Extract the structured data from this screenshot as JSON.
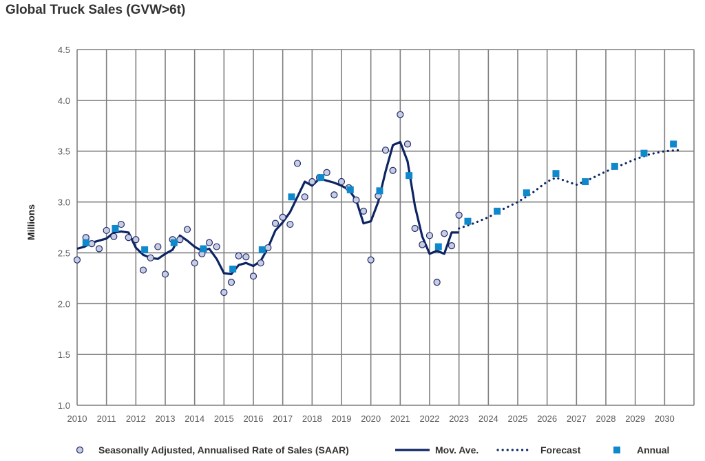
{
  "title": "Global Truck Sales (GVW>6t)",
  "colors": {
    "saar_fill": "#c9cde3",
    "saar_stroke": "#1f2b6b",
    "moving_average": "#0d2463",
    "forecast": "#0d2463",
    "annual": "#0f88cc",
    "grid": "#7f7f7f"
  },
  "legend": {
    "saar": "Seasonally Adjusted, Annualised Rate of Sales (SAAR)",
    "mov_ave": "Mov. Ave.",
    "forecast": "Forecast",
    "annual": "Annual"
  },
  "chart_data": {
    "type": "line",
    "title": "Global Truck Sales (GVW>6t)",
    "xlabel": "",
    "ylabel": "Millions",
    "xlim": [
      2010,
      2031
    ],
    "ylim": [
      1.0,
      4.5
    ],
    "yticks": [
      "1.0",
      "1.5",
      "2.0",
      "2.5",
      "3.0",
      "3.5",
      "4.0",
      "4.5"
    ],
    "xticks": [
      "2010",
      "2011",
      "2012",
      "2013",
      "2014",
      "2015",
      "2016",
      "2017",
      "2018",
      "2019",
      "2020",
      "2021",
      "2022",
      "2023",
      "2024",
      "2025",
      "2026",
      "2027",
      "2028",
      "2029",
      "2030"
    ],
    "grid": true,
    "legend_position": "bottom",
    "series": [
      {
        "name": "Seasonally Adjusted, Annualised Rate of Sales (SAAR)",
        "kind": "scatter",
        "points": [
          [
            2010.0,
            2.43
          ],
          [
            2010.3,
            2.65
          ],
          [
            2010.5,
            2.59
          ],
          [
            2010.75,
            2.54
          ],
          [
            2011.0,
            2.72
          ],
          [
            2011.25,
            2.66
          ],
          [
            2011.5,
            2.78
          ],
          [
            2011.75,
            2.65
          ],
          [
            2012.0,
            2.63
          ],
          [
            2012.25,
            2.33
          ],
          [
            2012.5,
            2.45
          ],
          [
            2012.75,
            2.56
          ],
          [
            2013.0,
            2.29
          ],
          [
            2013.25,
            2.63
          ],
          [
            2013.5,
            2.63
          ],
          [
            2013.75,
            2.73
          ],
          [
            2014.0,
            2.4
          ],
          [
            2014.25,
            2.49
          ],
          [
            2014.5,
            2.6
          ],
          [
            2014.75,
            2.56
          ],
          [
            2015.0,
            2.11
          ],
          [
            2015.25,
            2.21
          ],
          [
            2015.5,
            2.47
          ],
          [
            2015.75,
            2.46
          ],
          [
            2016.0,
            2.27
          ],
          [
            2016.25,
            2.4
          ],
          [
            2016.5,
            2.55
          ],
          [
            2016.75,
            2.79
          ],
          [
            2017.0,
            2.85
          ],
          [
            2017.25,
            2.78
          ],
          [
            2017.5,
            3.38
          ],
          [
            2017.75,
            3.05
          ],
          [
            2018.0,
            3.2
          ],
          [
            2018.25,
            3.24
          ],
          [
            2018.5,
            3.29
          ],
          [
            2018.75,
            3.07
          ],
          [
            2019.0,
            3.2
          ],
          [
            2019.25,
            3.14
          ],
          [
            2019.5,
            3.02
          ],
          [
            2019.75,
            2.91
          ],
          [
            2020.0,
            2.43
          ],
          [
            2020.25,
            3.06
          ],
          [
            2020.5,
            3.51
          ],
          [
            2020.75,
            3.31
          ],
          [
            2021.0,
            3.86
          ],
          [
            2021.25,
            3.57
          ],
          [
            2021.5,
            2.74
          ],
          [
            2021.75,
            2.58
          ],
          [
            2022.0,
            2.67
          ],
          [
            2022.25,
            2.21
          ],
          [
            2022.5,
            2.69
          ],
          [
            2022.75,
            2.57
          ],
          [
            2023.0,
            2.87
          ]
        ]
      },
      {
        "name": "Mov. Ave.",
        "kind": "line",
        "points": [
          [
            2010.0,
            2.54
          ],
          [
            2010.25,
            2.56
          ],
          [
            2010.5,
            2.6
          ],
          [
            2010.75,
            2.62
          ],
          [
            2011.0,
            2.64
          ],
          [
            2011.25,
            2.7
          ],
          [
            2011.5,
            2.71
          ],
          [
            2011.75,
            2.7
          ],
          [
            2012.0,
            2.55
          ],
          [
            2012.25,
            2.48
          ],
          [
            2012.5,
            2.45
          ],
          [
            2012.75,
            2.44
          ],
          [
            2013.0,
            2.49
          ],
          [
            2013.25,
            2.53
          ],
          [
            2013.5,
            2.67
          ],
          [
            2013.75,
            2.62
          ],
          [
            2014.0,
            2.56
          ],
          [
            2014.25,
            2.52
          ],
          [
            2014.5,
            2.54
          ],
          [
            2014.75,
            2.44
          ],
          [
            2015.0,
            2.3
          ],
          [
            2015.25,
            2.29
          ],
          [
            2015.5,
            2.38
          ],
          [
            2015.75,
            2.4
          ],
          [
            2016.0,
            2.37
          ],
          [
            2016.25,
            2.42
          ],
          [
            2016.5,
            2.55
          ],
          [
            2016.75,
            2.72
          ],
          [
            2017.0,
            2.8
          ],
          [
            2017.25,
            2.9
          ],
          [
            2017.5,
            3.05
          ],
          [
            2017.75,
            3.2
          ],
          [
            2018.0,
            3.16
          ],
          [
            2018.25,
            3.23
          ],
          [
            2018.5,
            3.21
          ],
          [
            2018.75,
            3.19
          ],
          [
            2019.0,
            3.16
          ],
          [
            2019.25,
            3.12
          ],
          [
            2019.5,
            3.02
          ],
          [
            2019.75,
            2.79
          ],
          [
            2020.0,
            2.81
          ],
          [
            2020.25,
            3.0
          ],
          [
            2020.5,
            3.3
          ],
          [
            2020.75,
            3.56
          ],
          [
            2021.0,
            3.59
          ],
          [
            2021.25,
            3.4
          ],
          [
            2021.5,
            2.96
          ],
          [
            2021.75,
            2.66
          ],
          [
            2022.0,
            2.49
          ],
          [
            2022.25,
            2.52
          ],
          [
            2022.5,
            2.49
          ],
          [
            2022.75,
            2.7
          ],
          [
            2023.0,
            2.7
          ]
        ]
      },
      {
        "name": "Forecast",
        "kind": "dotted-line",
        "points": [
          [
            2023.0,
            2.74
          ],
          [
            2023.5,
            2.79
          ],
          [
            2024.0,
            2.85
          ],
          [
            2024.5,
            2.93
          ],
          [
            2025.0,
            3.0
          ],
          [
            2025.5,
            3.09
          ],
          [
            2026.0,
            3.2
          ],
          [
            2026.3,
            3.24
          ],
          [
            2026.6,
            3.21
          ],
          [
            2027.0,
            3.17
          ],
          [
            2027.5,
            3.23
          ],
          [
            2028.0,
            3.3
          ],
          [
            2028.5,
            3.36
          ],
          [
            2029.0,
            3.42
          ],
          [
            2029.5,
            3.47
          ],
          [
            2030.0,
            3.5
          ],
          [
            2030.5,
            3.51
          ]
        ]
      },
      {
        "name": "Annual",
        "kind": "square",
        "points": [
          [
            2010.3,
            2.6
          ],
          [
            2011.3,
            2.74
          ],
          [
            2012.3,
            2.53
          ],
          [
            2013.3,
            2.6
          ],
          [
            2014.3,
            2.54
          ],
          [
            2015.3,
            2.34
          ],
          [
            2016.3,
            2.53
          ],
          [
            2017.3,
            3.05
          ],
          [
            2018.3,
            3.24
          ],
          [
            2019.3,
            3.12
          ],
          [
            2020.3,
            3.11
          ],
          [
            2021.3,
            3.26
          ],
          [
            2022.3,
            2.56
          ],
          [
            2023.3,
            2.81
          ],
          [
            2024.3,
            2.91
          ],
          [
            2025.3,
            3.09
          ],
          [
            2026.3,
            3.28
          ],
          [
            2027.3,
            3.2
          ],
          [
            2028.3,
            3.35
          ],
          [
            2029.3,
            3.48
          ],
          [
            2030.3,
            3.57
          ]
        ]
      }
    ]
  }
}
